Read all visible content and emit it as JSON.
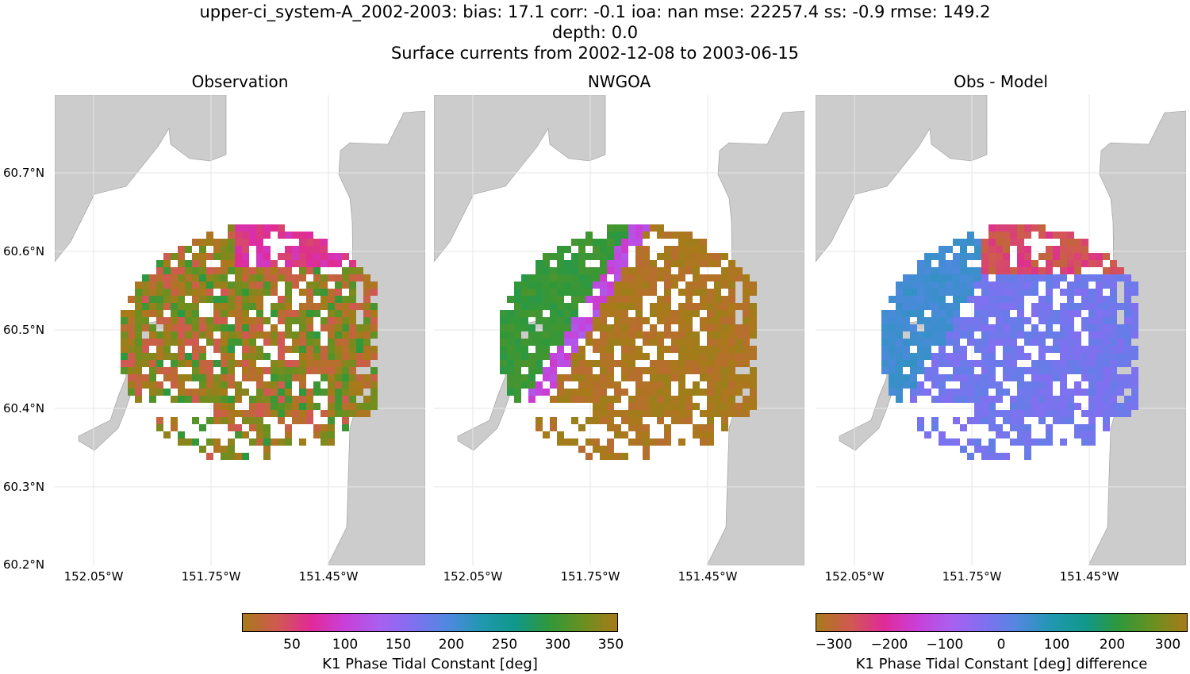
{
  "title": {
    "line1": "upper-ci_system-A_2002-2003: bias: 17.1  corr: -0.1  ioa: nan  mse: 22257.4  ss: -0.9  rmse: 149.2",
    "line2": "depth: 0.0",
    "line3": "Surface currents from 2002-12-08 to 2003-06-15"
  },
  "panels": [
    {
      "title": "Observation"
    },
    {
      "title": "NWGOA"
    },
    {
      "title": "Obs - Model"
    }
  ],
  "lat_ticks": [
    "60.7°N",
    "60.6°N",
    "60.5°N",
    "60.4°N",
    "60.3°N",
    "60.2°N"
  ],
  "lon_ticks": [
    "152.05°W",
    "151.75°W",
    "151.45°W"
  ],
  "colorbar1": {
    "label": "K1 Phase Tidal Constant [deg]",
    "ticks": [
      "50",
      "100",
      "150",
      "200",
      "250",
      "300",
      "350"
    ],
    "range": [
      0,
      360
    ]
  },
  "colorbar2": {
    "label": "K1 Phase Tidal Constant [deg] difference",
    "ticks": [
      "−300",
      "−200",
      "−100",
      "0",
      "100",
      "200",
      "300"
    ],
    "range": [
      -360,
      360
    ]
  },
  "colors": {
    "land": "#cccccc",
    "grid": "#e6e6e6",
    "cmap": [
      "#a87a1a",
      "#d05a50",
      "#e02a98",
      "#c840d8",
      "#a860f0",
      "#8070f0",
      "#5088e0",
      "#2098b0",
      "#10988a",
      "#30983a",
      "#6a9020",
      "#a87a1a"
    ]
  }
}
